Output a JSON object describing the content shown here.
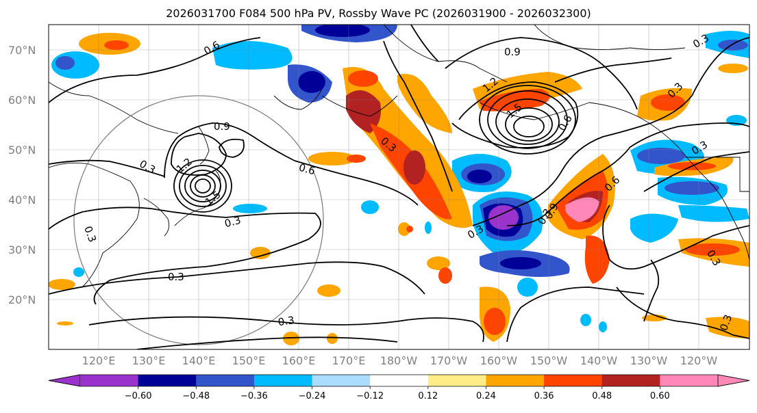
{
  "title": "2026031700 F084 500 hPa PV, Rossby Wave PC (2026031900 - 2026032300)",
  "lat_labels": [
    "70°N",
    "60°N",
    "50°N",
    "40°N",
    "30°N",
    "20°N"
  ],
  "lon_labels": [
    "120°E",
    "130°E",
    "140°E",
    "150°E",
    "160°E",
    "170°E",
    "180°W",
    "170°W",
    "160°W",
    "150°W",
    "140°W",
    "130°W",
    "120°W"
  ],
  "colorbar": {
    "colors": [
      "#9933cc",
      "#000099",
      "#3355cc",
      "#00bbff",
      "#aaddff",
      "#ffffff",
      "#ffee88",
      "#ffa500",
      "#ff4400",
      "#b22222",
      "#ff88b8"
    ],
    "ticks": [
      "−0.60",
      "−0.48",
      "−0.36",
      "−0.24",
      "−0.12",
      "0.12",
      "0.24",
      "0.36",
      "0.48",
      "0.60"
    ]
  },
  "contour_labels": [
    "0.6",
    "0.9",
    "0.3",
    "1.2",
    "1.5",
    "0.6",
    "0.3",
    "0.3",
    "0.3",
    "0.3",
    "0.9",
    "1.2",
    "1.5",
    "0.3",
    "0.3",
    "0.3",
    "0.6",
    "0.9",
    "0.3",
    "0.3",
    "0.3",
    "0.6",
    "0.3",
    "0.3"
  ],
  "colors": {
    "contour": "#000000",
    "grid": "#808080",
    "coast": "#000000"
  }
}
